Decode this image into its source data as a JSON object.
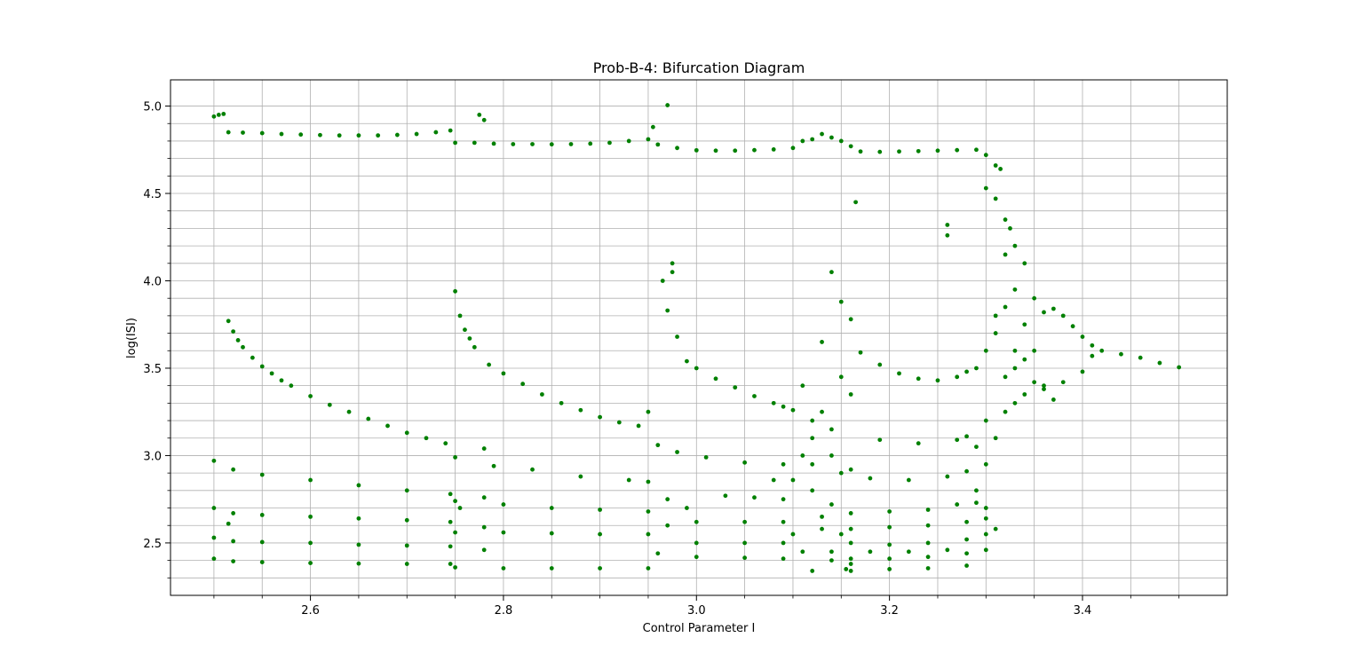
{
  "chart_data": {
    "type": "scatter",
    "title": "Prob-B-4: Bifurcation Diagram",
    "xlabel": "Control Parameter I",
    "ylabel": "log(ISI)",
    "xlim": [
      2.455,
      3.55
    ],
    "ylim": [
      2.2,
      5.15
    ],
    "xticks": [
      2.6,
      2.8,
      3.0,
      3.2,
      3.4
    ],
    "xtick_labels": [
      "2.6",
      "2.8",
      "3.0",
      "3.2",
      "3.4"
    ],
    "x_minor_ticks": [
      2.5,
      2.55,
      2.65,
      2.7,
      2.75,
      2.85,
      2.9,
      2.95,
      3.05,
      3.1,
      3.15,
      3.25,
      3.3,
      3.35,
      3.45,
      3.5
    ],
    "yticks": [
      2.5,
      3.0,
      3.5,
      4.0,
      4.5,
      5.0
    ],
    "ytick_labels": [
      "2.5",
      "3.0",
      "3.5",
      "4.0",
      "4.5",
      "5.0"
    ],
    "y_minor_ticks": [
      2.3,
      2.4,
      2.6,
      2.7,
      2.8,
      2.9,
      3.1,
      3.2,
      3.3,
      3.4,
      3.6,
      3.7,
      3.8,
      3.9,
      4.1,
      4.2,
      4.3,
      4.4,
      4.6,
      4.7,
      4.8,
      4.9
    ],
    "grid": true,
    "grid_color": "#b0b0b0",
    "marker_color": "#008000",
    "series": [
      {
        "points": [
          [
            2.5,
            4.94
          ],
          [
            2.505,
            4.95
          ],
          [
            2.51,
            4.955
          ],
          [
            2.515,
            4.85
          ],
          [
            2.53,
            4.848
          ],
          [
            2.55,
            4.845
          ],
          [
            2.57,
            4.84
          ],
          [
            2.59,
            4.837
          ],
          [
            2.61,
            4.834
          ],
          [
            2.63,
            4.832
          ],
          [
            2.65,
            4.832
          ],
          [
            2.67,
            4.832
          ],
          [
            2.69,
            4.835
          ],
          [
            2.71,
            4.84
          ],
          [
            2.73,
            4.85
          ],
          [
            2.745,
            4.86
          ],
          [
            2.775,
            4.95
          ],
          [
            2.78,
            4.92
          ],
          [
            2.75,
            4.79
          ],
          [
            2.77,
            4.79
          ],
          [
            2.79,
            4.785
          ],
          [
            2.81,
            4.782
          ],
          [
            2.83,
            4.782
          ],
          [
            2.85,
            4.781
          ],
          [
            2.87,
            4.782
          ],
          [
            2.89,
            4.785
          ],
          [
            2.91,
            4.79
          ],
          [
            2.93,
            4.8
          ],
          [
            2.95,
            4.81
          ],
          [
            2.955,
            4.88
          ],
          [
            2.97,
            5.005
          ],
          [
            2.96,
            4.78
          ],
          [
            2.98,
            4.76
          ],
          [
            3.0,
            4.747
          ],
          [
            3.02,
            4.745
          ],
          [
            3.04,
            4.745
          ],
          [
            3.06,
            4.748
          ],
          [
            3.08,
            4.752
          ],
          [
            3.1,
            4.76
          ],
          [
            3.11,
            4.8
          ],
          [
            3.12,
            4.81
          ],
          [
            3.13,
            4.84
          ],
          [
            3.14,
            4.82
          ],
          [
            3.15,
            4.8
          ],
          [
            3.16,
            4.77
          ],
          [
            3.17,
            4.74
          ],
          [
            3.19,
            4.738
          ],
          [
            3.21,
            4.74
          ],
          [
            3.23,
            4.742
          ],
          [
            3.25,
            4.745
          ],
          [
            3.27,
            4.748
          ],
          [
            3.29,
            4.75
          ],
          [
            3.3,
            4.72
          ],
          [
            3.31,
            4.66
          ],
          [
            3.315,
            4.64
          ],
          [
            3.165,
            4.45
          ],
          [
            3.26,
            4.32
          ],
          [
            3.26,
            4.26
          ],
          [
            3.3,
            4.53
          ],
          [
            3.31,
            4.47
          ],
          [
            3.32,
            4.35
          ],
          [
            3.325,
            4.3
          ],
          [
            2.515,
            3.77
          ],
          [
            2.52,
            3.71
          ],
          [
            2.525,
            3.66
          ],
          [
            2.53,
            3.62
          ],
          [
            2.54,
            3.56
          ],
          [
            2.55,
            3.51
          ],
          [
            2.56,
            3.47
          ],
          [
            2.57,
            3.43
          ],
          [
            2.58,
            3.4
          ],
          [
            2.6,
            3.34
          ],
          [
            2.62,
            3.29
          ],
          [
            2.64,
            3.25
          ],
          [
            2.66,
            3.21
          ],
          [
            2.68,
            3.17
          ],
          [
            2.7,
            3.13
          ],
          [
            2.72,
            3.1
          ],
          [
            2.74,
            3.07
          ],
          [
            2.75,
            3.94
          ],
          [
            2.755,
            3.8
          ],
          [
            2.76,
            3.72
          ],
          [
            2.765,
            3.67
          ],
          [
            2.77,
            3.62
          ],
          [
            2.785,
            3.52
          ],
          [
            2.8,
            3.47
          ],
          [
            2.82,
            3.41
          ],
          [
            2.84,
            3.35
          ],
          [
            2.86,
            3.3
          ],
          [
            2.88,
            3.26
          ],
          [
            2.9,
            3.22
          ],
          [
            2.92,
            3.19
          ],
          [
            2.94,
            3.17
          ],
          [
            2.95,
            3.25
          ],
          [
            2.965,
            4.0
          ],
          [
            2.97,
            3.83
          ],
          [
            2.975,
            4.05
          ],
          [
            2.975,
            4.1
          ],
          [
            2.98,
            3.68
          ],
          [
            2.99,
            3.54
          ],
          [
            3.0,
            3.5
          ],
          [
            3.02,
            3.44
          ],
          [
            3.04,
            3.39
          ],
          [
            3.06,
            3.34
          ],
          [
            3.08,
            3.3
          ],
          [
            3.09,
            3.28
          ],
          [
            3.1,
            3.26
          ],
          [
            3.11,
            3.4
          ],
          [
            3.12,
            3.2
          ],
          [
            3.13,
            3.65
          ],
          [
            3.14,
            4.05
          ],
          [
            3.15,
            3.88
          ],
          [
            3.16,
            3.78
          ],
          [
            3.17,
            3.59
          ],
          [
            3.19,
            3.52
          ],
          [
            3.21,
            3.47
          ],
          [
            3.23,
            3.44
          ],
          [
            3.25,
            3.43
          ],
          [
            3.27,
            3.45
          ],
          [
            3.28,
            3.48
          ],
          [
            3.29,
            3.5
          ],
          [
            3.3,
            3.6
          ],
          [
            3.31,
            3.8
          ],
          [
            3.32,
            4.15
          ],
          [
            3.33,
            4.2
          ],
          [
            3.34,
            4.1
          ],
          [
            3.35,
            3.9
          ],
          [
            3.36,
            3.82
          ],
          [
            3.37,
            3.84
          ],
          [
            3.38,
            3.8
          ],
          [
            3.39,
            3.74
          ],
          [
            3.4,
            3.68
          ],
          [
            3.41,
            3.63
          ],
          [
            3.42,
            3.6
          ],
          [
            3.44,
            3.58
          ],
          [
            3.46,
            3.56
          ],
          [
            3.48,
            3.53
          ],
          [
            3.5,
            3.505
          ],
          [
            3.33,
            3.3
          ],
          [
            3.34,
            3.35
          ],
          [
            3.35,
            3.42
          ],
          [
            3.36,
            3.4
          ],
          [
            3.38,
            3.42
          ],
          [
            3.4,
            3.48
          ],
          [
            3.41,
            3.57
          ],
          [
            2.5,
            2.97
          ],
          [
            2.52,
            2.92
          ],
          [
            2.55,
            2.89
          ],
          [
            2.6,
            2.86
          ],
          [
            2.65,
            2.83
          ],
          [
            2.7,
            2.8
          ],
          [
            2.745,
            2.78
          ],
          [
            2.75,
            2.99
          ],
          [
            2.78,
            3.04
          ],
          [
            2.79,
            2.94
          ],
          [
            2.83,
            2.92
          ],
          [
            2.88,
            2.88
          ],
          [
            2.93,
            2.86
          ],
          [
            2.95,
            2.85
          ],
          [
            2.96,
            3.06
          ],
          [
            2.98,
            3.02
          ],
          [
            3.01,
            2.99
          ],
          [
            3.05,
            2.96
          ],
          [
            3.09,
            2.95
          ],
          [
            3.11,
            3.0
          ],
          [
            3.12,
            2.95
          ],
          [
            3.14,
            3.0
          ],
          [
            3.16,
            2.92
          ],
          [
            3.18,
            2.87
          ],
          [
            3.22,
            2.86
          ],
          [
            3.26,
            2.88
          ],
          [
            3.28,
            2.91
          ],
          [
            3.19,
            3.09
          ],
          [
            3.23,
            3.07
          ],
          [
            3.27,
            3.09
          ],
          [
            3.28,
            3.11
          ],
          [
            2.5,
            2.7
          ],
          [
            2.52,
            2.67
          ],
          [
            2.55,
            2.66
          ],
          [
            2.6,
            2.65
          ],
          [
            2.65,
            2.64
          ],
          [
            2.7,
            2.63
          ],
          [
            2.745,
            2.62
          ],
          [
            2.75,
            2.74
          ],
          [
            2.78,
            2.76
          ],
          [
            2.8,
            2.72
          ],
          [
            2.85,
            2.7
          ],
          [
            2.9,
            2.69
          ],
          [
            2.95,
            2.68
          ],
          [
            2.97,
            2.75
          ],
          [
            2.99,
            2.7
          ],
          [
            3.03,
            2.77
          ],
          [
            3.06,
            2.76
          ],
          [
            3.09,
            2.75
          ],
          [
            3.16,
            2.67
          ],
          [
            3.2,
            2.68
          ],
          [
            3.24,
            2.69
          ],
          [
            3.27,
            2.72
          ],
          [
            3.29,
            2.73
          ],
          [
            2.5,
            2.53
          ],
          [
            2.52,
            2.51
          ],
          [
            2.55,
            2.505
          ],
          [
            2.6,
            2.5
          ],
          [
            2.65,
            2.49
          ],
          [
            2.7,
            2.485
          ],
          [
            2.745,
            2.48
          ],
          [
            2.75,
            2.56
          ],
          [
            2.78,
            2.59
          ],
          [
            2.8,
            2.56
          ],
          [
            2.85,
            2.555
          ],
          [
            2.9,
            2.55
          ],
          [
            2.95,
            2.55
          ],
          [
            2.97,
            2.6
          ],
          [
            3.0,
            2.62
          ],
          [
            3.05,
            2.62
          ],
          [
            3.09,
            2.62
          ],
          [
            3.13,
            2.58
          ],
          [
            3.16,
            2.58
          ],
          [
            3.2,
            2.59
          ],
          [
            3.24,
            2.6
          ],
          [
            3.28,
            2.62
          ],
          [
            3.3,
            2.64
          ],
          [
            2.5,
            2.41
          ],
          [
            2.52,
            2.395
          ],
          [
            2.55,
            2.39
          ],
          [
            2.6,
            2.385
          ],
          [
            2.65,
            2.382
          ],
          [
            2.7,
            2.38
          ],
          [
            2.745,
            2.38
          ],
          [
            2.75,
            2.36
          ],
          [
            2.78,
            2.46
          ],
          [
            2.8,
            2.355
          ],
          [
            2.85,
            2.355
          ],
          [
            2.9,
            2.355
          ],
          [
            2.95,
            2.355
          ],
          [
            2.96,
            2.44
          ],
          [
            3.0,
            2.5
          ],
          [
            3.05,
            2.5
          ],
          [
            3.09,
            2.5
          ],
          [
            3.0,
            2.42
          ],
          [
            3.05,
            2.415
          ],
          [
            3.09,
            2.41
          ],
          [
            3.12,
            2.34
          ],
          [
            3.16,
            2.34
          ],
          [
            3.2,
            2.35
          ],
          [
            3.24,
            2.355
          ],
          [
            3.28,
            2.37
          ],
          [
            3.16,
            2.5
          ],
          [
            3.2,
            2.49
          ],
          [
            3.24,
            2.5
          ],
          [
            3.28,
            2.52
          ],
          [
            3.3,
            2.55
          ],
          [
            3.16,
            2.41
          ],
          [
            3.2,
            2.41
          ],
          [
            3.24,
            2.42
          ],
          [
            3.28,
            2.44
          ],
          [
            3.3,
            2.46
          ],
          [
            3.1,
            2.86
          ],
          [
            3.12,
            2.8
          ],
          [
            3.14,
            2.72
          ],
          [
            3.15,
            2.9
          ],
          [
            3.1,
            2.55
          ],
          [
            3.11,
            2.45
          ],
          [
            3.13,
            2.65
          ],
          [
            3.15,
            2.55
          ],
          [
            3.14,
            2.45
          ],
          [
            3.155,
            2.35
          ],
          [
            3.12,
            3.1
          ],
          [
            3.13,
            3.25
          ],
          [
            3.15,
            3.45
          ],
          [
            3.16,
            3.35
          ],
          [
            3.14,
            3.15
          ],
          [
            3.29,
            2.8
          ],
          [
            3.3,
            2.95
          ],
          [
            3.31,
            3.1
          ],
          [
            3.32,
            3.25
          ],
          [
            3.33,
            3.6
          ],
          [
            3.34,
            3.75
          ],
          [
            3.31,
            3.7
          ],
          [
            3.32,
            3.85
          ],
          [
            3.33,
            3.95
          ],
          [
            3.3,
            3.2
          ],
          [
            3.29,
            3.05
          ],
          [
            3.3,
            2.7
          ],
          [
            3.31,
            2.58
          ],
          [
            3.32,
            3.45
          ],
          [
            3.33,
            3.5
          ],
          [
            3.34,
            3.55
          ],
          [
            3.35,
            3.6
          ],
          [
            3.36,
            3.38
          ],
          [
            3.37,
            3.32
          ],
          [
            3.14,
            2.4
          ],
          [
            3.16,
            2.38
          ],
          [
            3.18,
            2.45
          ],
          [
            3.22,
            2.45
          ],
          [
            3.26,
            2.46
          ],
          [
            2.515,
            2.61
          ],
          [
            2.755,
            2.7
          ],
          [
            3.08,
            2.86
          ]
        ]
      }
    ]
  }
}
